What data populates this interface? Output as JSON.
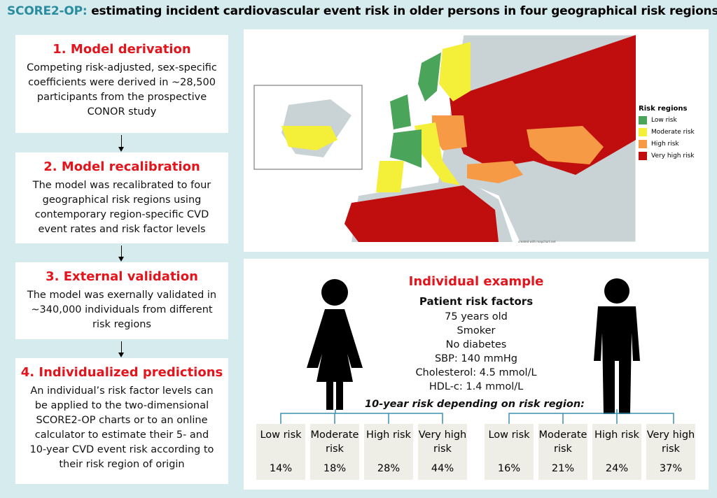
{
  "title": {
    "prefix": "SCORE2-OP:",
    "text": "estimating incident cardiovascular event risk in older persons in four geographical risk regions"
  },
  "steps": [
    {
      "heading": "1. Model derivation",
      "text": "Competing risk-adjusted, sex-specific coefficients were  derived in ~28,500 participants from the prospective CONOR study"
    },
    {
      "heading": "2. Model recalibration",
      "text": "The model was recalibrated to four geographical risk regions using contemporary region-specific CVD event rates and risk factor levels"
    },
    {
      "heading": "3. External validation",
      "text": "The model was exernally validated in ~340,000 individuals from different risk regions"
    },
    {
      "heading": "4. Individualized predictions",
      "text": "An individual’s risk factor levels can be applied to the two-dimensional SCORE2-OP charts or to an online calculator to estimate their 5- and 10-year CVD event risk according to their risk region of origin"
    }
  ],
  "map": {
    "legend_title": "Risk regions",
    "legend": [
      {
        "label": "Low risk",
        "color": "#4aa45a"
      },
      {
        "label": "Moderate risk",
        "color": "#f4f03a"
      },
      {
        "label": "High risk",
        "color": "#f79a46"
      },
      {
        "label": "Very high risk",
        "color": "#c00d0d"
      }
    ],
    "credit": "created with mapchart.net"
  },
  "example": {
    "title": "Individual example",
    "factors_title": "Patient risk factors",
    "factors": [
      "75 years old",
      "Smoker",
      "No diabetes",
      "SBP: 140 mmHg",
      "Cholesterol: 4.5 mmol/L",
      "HDL-c: 1.4 mmol/L"
    ],
    "risk_title": "10-year risk depending on risk region:",
    "female": [
      {
        "region": "Low risk",
        "risk": "14%"
      },
      {
        "region": "Moderate risk",
        "risk": "18%"
      },
      {
        "region": "High risk",
        "risk": "28%"
      },
      {
        "region": "Very high risk",
        "risk": "44%"
      }
    ],
    "male": [
      {
        "region": "Low risk",
        "risk": "16%"
      },
      {
        "region": "Moderate risk",
        "risk": "21%"
      },
      {
        "region": "High risk",
        "risk": "24%"
      },
      {
        "region": "Very high risk",
        "risk": "37%"
      }
    ]
  }
}
